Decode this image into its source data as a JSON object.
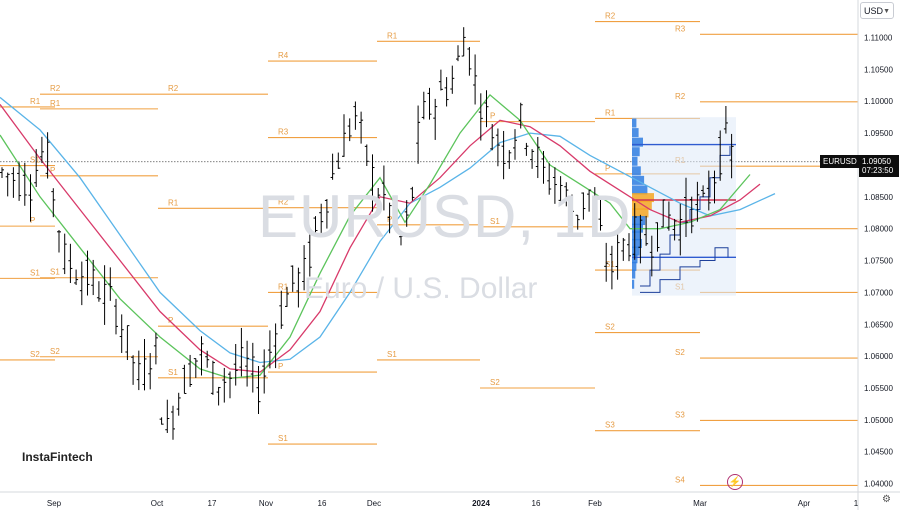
{
  "header": {
    "currency": "USD"
  },
  "watermark": {
    "symbol": "EURUSD, 1D",
    "description": "Euro / U.S. Dollar"
  },
  "logo": "InstaFintech",
  "last_price": {
    "symbol": "EURUSD",
    "price": "1.09050",
    "countdown": "07:23:50"
  },
  "colors": {
    "candles": "#000000",
    "pivot_lines": "#f0a042",
    "pivot_labels": "#e69c45",
    "ma_fast": "#5cc45c",
    "ma_mid": "#d83a6a",
    "ma_slow": "#5ab4e8",
    "volume_profile": "#2f7de1",
    "volume_profile_poc": "#f5a623",
    "value_area": "#dfe9f7"
  },
  "icons": {
    "currency_dropdown": "chevron-down-icon",
    "replay": "lightning-icon",
    "settings": "gear-icon"
  },
  "chart_data": {
    "type": "candlestick",
    "symbol": "EURUSD",
    "timeframe": "1D",
    "ylim": [
      1.0385,
      1.1155
    ],
    "y_ticks": [
      "1.04000",
      "1.04500",
      "1.05000",
      "1.05500",
      "1.06000",
      "1.06500",
      "1.07000",
      "1.07500",
      "1.08000",
      "1.08500",
      "1.09000",
      "1.09500",
      "1.10000",
      "1.10500",
      "1.11000"
    ],
    "x_ticks": [
      "Sep",
      "Oct",
      "17",
      "Nov",
      "16",
      "Dec",
      "2024",
      "16",
      "Feb",
      "Mar",
      "Apr",
      "1"
    ],
    "last_price": 1.0905,
    "path_anchors": [
      [
        0,
        1.089
      ],
      [
        30,
        1.087
      ],
      [
        45,
        1.093
      ],
      [
        65,
        1.075
      ],
      [
        90,
        1.072
      ],
      [
        115,
        1.068
      ],
      [
        140,
        1.056
      ],
      [
        155,
        1.062
      ],
      [
        165,
        1.047
      ],
      [
        180,
        1.055
      ],
      [
        200,
        1.061
      ],
      [
        215,
        1.056
      ],
      [
        230,
        1.057
      ],
      [
        245,
        1.059
      ],
      [
        260,
        1.055
      ],
      [
        275,
        1.064
      ],
      [
        290,
        1.071
      ],
      [
        305,
        1.073
      ],
      [
        320,
        1.082
      ],
      [
        340,
        1.092
      ],
      [
        355,
        1.098
      ],
      [
        365,
        1.092
      ],
      [
        375,
        1.087
      ],
      [
        390,
        1.083
      ],
      [
        400,
        1.078
      ],
      [
        410,
        1.082
      ],
      [
        420,
        1.097
      ],
      [
        440,
        1.101
      ],
      [
        455,
        1.104
      ],
      [
        465,
        1.111
      ],
      [
        475,
        1.103
      ],
      [
        490,
        1.096
      ],
      [
        505,
        1.092
      ],
      [
        520,
        1.097
      ],
      [
        530,
        1.094
      ],
      [
        545,
        1.088
      ],
      [
        560,
        1.087
      ],
      [
        575,
        1.082
      ],
      [
        590,
        1.086
      ],
      [
        600,
        1.079
      ],
      [
        610,
        1.073
      ],
      [
        620,
        1.077
      ],
      [
        635,
        1.079
      ],
      [
        650,
        1.078
      ],
      [
        665,
        1.082
      ],
      [
        680,
        1.081
      ],
      [
        695,
        1.084
      ],
      [
        705,
        1.083
      ],
      [
        715,
        1.089
      ],
      [
        725,
        1.094
      ],
      [
        735,
        1.0905
      ]
    ],
    "ma_fast": [
      [
        0,
        1.0947
      ],
      [
        40,
        1.085
      ],
      [
        80,
        1.077
      ],
      [
        120,
        1.069
      ],
      [
        160,
        1.063
      ],
      [
        200,
        1.058
      ],
      [
        230,
        1.0565
      ],
      [
        260,
        1.057
      ],
      [
        290,
        1.063
      ],
      [
        320,
        1.073
      ],
      [
        350,
        1.082
      ],
      [
        380,
        1.088
      ],
      [
        405,
        1.081
      ],
      [
        430,
        1.087
      ],
      [
        460,
        1.095
      ],
      [
        490,
        1.101
      ],
      [
        520,
        1.097
      ],
      [
        550,
        1.09
      ],
      [
        580,
        1.087
      ],
      [
        610,
        1.084
      ],
      [
        630,
        1.08
      ],
      [
        660,
        1.08
      ],
      [
        690,
        1.081
      ],
      [
        720,
        1.083
      ],
      [
        750,
        1.0885
      ]
    ],
    "ma_mid": [
      [
        0,
        1.0995
      ],
      [
        40,
        1.091
      ],
      [
        80,
        1.083
      ],
      [
        120,
        1.075
      ],
      [
        160,
        1.067
      ],
      [
        200,
        1.061
      ],
      [
        230,
        1.058
      ],
      [
        260,
        1.0575
      ],
      [
        290,
        1.061
      ],
      [
        320,
        1.067
      ],
      [
        350,
        1.077
      ],
      [
        380,
        1.085
      ],
      [
        410,
        1.084
      ],
      [
        440,
        1.088
      ],
      [
        470,
        1.093
      ],
      [
        500,
        1.097
      ],
      [
        530,
        1.096
      ],
      [
        560,
        1.093
      ],
      [
        590,
        1.089
      ],
      [
        620,
        1.086
      ],
      [
        650,
        1.083
      ],
      [
        680,
        1.081
      ],
      [
        710,
        1.082
      ],
      [
        740,
        1.0845
      ],
      [
        760,
        1.087
      ]
    ],
    "ma_slow": [
      [
        0,
        1.1006
      ],
      [
        40,
        1.0955
      ],
      [
        80,
        1.088
      ],
      [
        120,
        1.079
      ],
      [
        160,
        1.07
      ],
      [
        200,
        1.064
      ],
      [
        230,
        1.0605
      ],
      [
        260,
        1.059
      ],
      [
        290,
        1.0595
      ],
      [
        320,
        1.063
      ],
      [
        350,
        1.07
      ],
      [
        380,
        1.078
      ],
      [
        410,
        1.084
      ],
      [
        440,
        1.0865
      ],
      [
        470,
        1.0895
      ],
      [
        500,
        1.0935
      ],
      [
        530,
        1.095
      ],
      [
        560,
        1.0945
      ],
      [
        590,
        1.0915
      ],
      [
        620,
        1.089
      ],
      [
        650,
        1.0865
      ],
      [
        680,
        1.084
      ],
      [
        710,
        1.082
      ],
      [
        740,
        1.083
      ],
      [
        775,
        1.0855
      ]
    ],
    "pivot_segments": [
      {
        "label": "R1",
        "y": 1.0991,
        "x0": -2,
        "x1": 55
      },
      {
        "label": "S1",
        "y": 1.0899,
        "x0": -2,
        "x1": 55
      },
      {
        "label": "S1",
        "y": 1.0722,
        "x0": -2,
        "x1": 55
      },
      {
        "label": "S2",
        "y": 1.0594,
        "x0": -2,
        "x1": 55
      },
      {
        "label": "P",
        "y": 1.0804,
        "x0": -2,
        "x1": 55
      },
      {
        "label": "R2",
        "y": 1.1011,
        "x0": 40,
        "x1": 158
      },
      {
        "label": "R1",
        "y": 1.0988,
        "x0": 40,
        "x1": 158
      },
      {
        "label": "P",
        "y": 1.0883,
        "x0": 40,
        "x1": 158
      },
      {
        "label": "S1",
        "y": 1.0723,
        "x0": 40,
        "x1": 158
      },
      {
        "label": "S2",
        "y": 1.0599,
        "x0": 40,
        "x1": 158
      },
      {
        "label": "R2",
        "y": 1.1011,
        "x0": 158,
        "x1": 268
      },
      {
        "label": "R1",
        "y": 1.0832,
        "x0": 158,
        "x1": 268
      },
      {
        "label": "P",
        "y": 1.0647,
        "x0": 158,
        "x1": 268
      },
      {
        "label": "S1",
        "y": 1.0566,
        "x0": 158,
        "x1": 268
      },
      {
        "label": "R4",
        "y": 1.1063,
        "x0": 268,
        "x1": 377
      },
      {
        "label": "R3",
        "y": 1.0943,
        "x0": 268,
        "x1": 377
      },
      {
        "label": "R2",
        "y": 1.0833,
        "x0": 268,
        "x1": 377
      },
      {
        "label": "R1",
        "y": 1.07,
        "x0": 268,
        "x1": 377
      },
      {
        "label": "P",
        "y": 1.0575,
        "x0": 268,
        "x1": 377
      },
      {
        "label": "S1",
        "y": 1.0462,
        "x0": 268,
        "x1": 377
      },
      {
        "label": "R1",
        "y": 1.1094,
        "x0": 377,
        "x1": 480
      },
      {
        "label": "P",
        "y": 1.0806,
        "x0": 377,
        "x1": 480
      },
      {
        "label": "S1",
        "y": 1.0594,
        "x0": 377,
        "x1": 480
      },
      {
        "label": "P",
        "y": 1.0968,
        "x0": 480,
        "x1": 595
      },
      {
        "label": "S1",
        "y": 1.0803,
        "x0": 480,
        "x1": 595
      },
      {
        "label": "S2",
        "y": 1.055,
        "x0": 480,
        "x1": 595
      },
      {
        "label": "R2",
        "y": 1.1125,
        "x0": 595,
        "x1": 700
      },
      {
        "label": "R1",
        "y": 1.0973,
        "x0": 595,
        "x1": 700
      },
      {
        "label": "P",
        "y": 1.0886,
        "x0": 595,
        "x1": 700
      },
      {
        "label": "S1",
        "y": 1.0735,
        "x0": 595,
        "x1": 700
      },
      {
        "label": "S2",
        "y": 1.0637,
        "x0": 595,
        "x1": 700
      },
      {
        "label": "S3",
        "y": 1.0483,
        "x0": 595,
        "x1": 700
      },
      {
        "label": "R3",
        "y": 1.1105,
        "x0": 700,
        "x1": 858
      },
      {
        "label": "R2",
        "y": 1.0999,
        "x0": 700,
        "x1": 858
      },
      {
        "label": "R1",
        "y": 1.0898,
        "x0": 700,
        "x1": 858
      },
      {
        "label": "P",
        "y": 1.08,
        "x0": 700,
        "x1": 858
      },
      {
        "label": "S1",
        "y": 1.07,
        "x0": 700,
        "x1": 858
      },
      {
        "label": "S2",
        "y": 1.0597,
        "x0": 700,
        "x1": 858
      },
      {
        "label": "S3",
        "y": 1.0499,
        "x0": 700,
        "x1": 858
      },
      {
        "label": "S4",
        "y": 1.0397,
        "x0": 700,
        "x1": 858
      }
    ],
    "volume_profile": {
      "range": [
        1.0695,
        1.0975
      ],
      "hlines": [
        1.0932,
        1.0845,
        1.0755
      ],
      "bars": [
        {
          "y": 1.0965,
          "w": 4
        },
        {
          "y": 1.095,
          "w": 6
        },
        {
          "y": 1.0935,
          "w": 10
        },
        {
          "y": 1.092,
          "w": 7
        },
        {
          "y": 1.0905,
          "w": 5
        },
        {
          "y": 1.089,
          "w": 8
        },
        {
          "y": 1.0875,
          "w": 11
        },
        {
          "y": 1.086,
          "w": 14
        },
        {
          "y": 1.0848,
          "w": 20,
          "poc": true
        },
        {
          "y": 1.0836,
          "w": 18,
          "poc": true
        },
        {
          "y": 1.0824,
          "w": 15,
          "poc": true
        },
        {
          "y": 1.0812,
          "w": 12
        },
        {
          "y": 1.08,
          "w": 10
        },
        {
          "y": 1.0788,
          "w": 8
        },
        {
          "y": 1.0776,
          "w": 9
        },
        {
          "y": 1.0764,
          "w": 7
        },
        {
          "y": 1.0752,
          "w": 5
        },
        {
          "y": 1.074,
          "w": 4
        },
        {
          "y": 1.0728,
          "w": 3
        },
        {
          "y": 1.0712,
          "w": 2
        }
      ]
    }
  }
}
